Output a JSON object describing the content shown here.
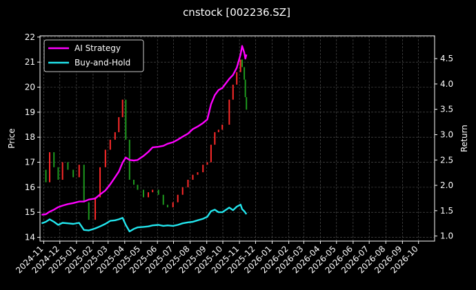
{
  "chart_data": {
    "type": "line",
    "title": "cnstock [002236.SZ]",
    "ylabel": "Price",
    "y2label": "Return",
    "background": "#000000",
    "grid": true,
    "legend_position": "top-left",
    "colors": {
      "up": "#ff2a2a",
      "down": "#1e9a1e",
      "ai_strategy": "#ff00ff",
      "buy_and_hold": "#22e6ee",
      "grid": "#5a5a5a",
      "axis": "#ffffff"
    },
    "x_range": [
      "2024-10-25",
      "2026-10-31"
    ],
    "ylim": [
      13.85,
      22.05
    ],
    "y2lim": [
      0.9,
      4.95
    ],
    "yticks": [
      14,
      15,
      16,
      17,
      18,
      19,
      20,
      21,
      22
    ],
    "y2ticks": [
      1.0,
      1.5,
      2.0,
      2.5,
      3.0,
      3.5,
      4.0,
      4.5
    ],
    "y2tick_labels": [
      "1.0",
      "1.5",
      "2.0",
      "2.5",
      "3.0",
      "3.5",
      "4.0",
      "4.5"
    ],
    "xticks": [
      "2024-11",
      "2024-12",
      "2025-01",
      "2025-02",
      "2025-03",
      "2025-04",
      "2025-05",
      "2025-06",
      "2025-07",
      "2025-08",
      "2025-09",
      "2025-10",
      "2025-11",
      "2025-12",
      "2026-01",
      "2026-02",
      "2026-03",
      "2026-04",
      "2026-05",
      "2026-06",
      "2026-07",
      "2026-08",
      "2026-09",
      "2026-10"
    ],
    "series": [
      {
        "name": "AI Strategy",
        "axis": "right",
        "x": [
          "2024-10-28",
          "2024-11-05",
          "2024-11-12",
          "2024-11-20",
          "2024-11-28",
          "2024-12-06",
          "2024-12-16",
          "2024-12-26",
          "2025-01-06",
          "2025-01-15",
          "2025-01-24",
          "2025-02-05",
          "2025-02-14",
          "2025-02-24",
          "2025-03-05",
          "2025-03-14",
          "2025-03-21",
          "2025-03-28",
          "2025-04-03",
          "2025-04-10",
          "2025-04-18",
          "2025-04-25",
          "2025-05-06",
          "2025-05-15",
          "2025-05-23",
          "2025-06-03",
          "2025-06-12",
          "2025-06-20",
          "2025-06-30",
          "2025-07-09",
          "2025-07-18",
          "2025-07-28",
          "2025-08-06",
          "2025-08-15",
          "2025-08-25",
          "2025-09-02",
          "2025-09-09",
          "2025-09-16",
          "2025-09-23",
          "2025-09-30",
          "2025-10-13",
          "2025-10-20",
          "2025-10-27",
          "2025-11-03",
          "2025-11-06",
          "2025-11-10",
          "2025-11-12",
          "2025-11-14"
        ],
        "values": [
          1.42,
          1.43,
          1.48,
          1.52,
          1.57,
          1.6,
          1.63,
          1.65,
          1.68,
          1.68,
          1.72,
          1.74,
          1.82,
          1.9,
          2.02,
          2.16,
          2.27,
          2.45,
          2.55,
          2.5,
          2.49,
          2.5,
          2.58,
          2.66,
          2.75,
          2.76,
          2.78,
          2.82,
          2.85,
          2.9,
          2.96,
          3.02,
          3.11,
          3.16,
          3.23,
          3.3,
          3.6,
          3.78,
          3.88,
          3.92,
          4.1,
          4.18,
          4.32,
          4.58,
          4.75,
          4.62,
          4.5,
          4.58
        ]
      },
      {
        "name": "Buy-and-Hold",
        "axis": "right",
        "x": [
          "2024-10-28",
          "2024-11-05",
          "2024-11-12",
          "2024-11-20",
          "2024-11-28",
          "2024-12-06",
          "2024-12-16",
          "2024-12-26",
          "2025-01-06",
          "2025-01-15",
          "2025-01-24",
          "2025-02-05",
          "2025-02-14",
          "2025-02-24",
          "2025-03-05",
          "2025-03-14",
          "2025-03-21",
          "2025-03-28",
          "2025-04-03",
          "2025-04-10",
          "2025-04-18",
          "2025-04-25",
          "2025-05-06",
          "2025-05-15",
          "2025-05-23",
          "2025-06-03",
          "2025-06-12",
          "2025-06-20",
          "2025-06-30",
          "2025-07-09",
          "2025-07-18",
          "2025-07-28",
          "2025-08-06",
          "2025-08-15",
          "2025-08-25",
          "2025-09-02",
          "2025-09-09",
          "2025-09-16",
          "2025-09-23",
          "2025-09-30",
          "2025-10-13",
          "2025-10-20",
          "2025-10-27",
          "2025-11-03",
          "2025-11-06",
          "2025-11-10",
          "2025-11-12",
          "2025-11-14"
        ],
        "values": [
          1.25,
          1.28,
          1.33,
          1.28,
          1.22,
          1.26,
          1.25,
          1.24,
          1.26,
          1.12,
          1.11,
          1.15,
          1.19,
          1.24,
          1.3,
          1.31,
          1.33,
          1.36,
          1.22,
          1.09,
          1.14,
          1.17,
          1.18,
          1.19,
          1.21,
          1.22,
          1.2,
          1.21,
          1.2,
          1.22,
          1.25,
          1.27,
          1.28,
          1.31,
          1.34,
          1.38,
          1.49,
          1.52,
          1.47,
          1.47,
          1.56,
          1.51,
          1.58,
          1.62,
          1.53,
          1.49,
          1.46,
          1.43
        ]
      }
    ],
    "price_series": {
      "name": "Price",
      "axis": "left",
      "x": [
        "2024-10-28",
        "2024-11-05",
        "2024-11-12",
        "2024-11-20",
        "2024-11-28",
        "2024-12-06",
        "2024-12-16",
        "2024-12-26",
        "2025-01-06",
        "2025-01-15",
        "2025-01-24",
        "2025-02-05",
        "2025-02-14",
        "2025-02-24",
        "2025-03-05",
        "2025-03-14",
        "2025-03-21",
        "2025-03-28",
        "2025-04-03",
        "2025-04-10",
        "2025-04-18",
        "2025-04-25",
        "2025-05-06",
        "2025-05-15",
        "2025-05-23",
        "2025-06-03",
        "2025-06-12",
        "2025-06-20",
        "2025-06-30",
        "2025-07-09",
        "2025-07-18",
        "2025-07-28",
        "2025-08-06",
        "2025-08-15",
        "2025-08-25",
        "2025-09-02",
        "2025-09-09",
        "2025-09-16",
        "2025-09-23",
        "2025-09-30",
        "2025-10-13",
        "2025-10-20",
        "2025-10-27",
        "2025-11-03",
        "2025-11-06",
        "2025-11-10",
        "2025-11-12",
        "2025-11-14"
      ],
      "values": [
        16.7,
        16.2,
        17.4,
        16.8,
        16.3,
        17.0,
        16.7,
        16.4,
        16.9,
        15.4,
        14.7,
        15.6,
        16.8,
        17.5,
        17.9,
        18.2,
        18.8,
        19.5,
        17.9,
        16.3,
        16.1,
        15.9,
        15.6,
        15.8,
        15.9,
        15.7,
        15.3,
        15.2,
        15.4,
        15.7,
        16.0,
        16.3,
        16.5,
        16.6,
        16.9,
        17.0,
        17.7,
        18.2,
        18.3,
        18.5,
        19.5,
        20.1,
        20.6,
        21.1,
        20.8,
        20.3,
        19.6,
        19.1
      ]
    }
  }
}
